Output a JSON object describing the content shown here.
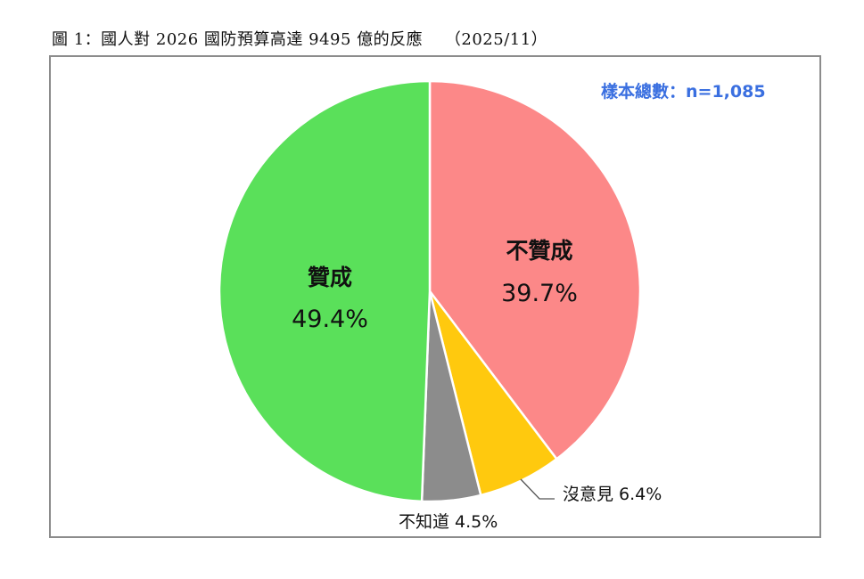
{
  "header": {
    "title": "圖 1：國人對 2026 國防預算高達 9495 億的反應　 （2025/11）"
  },
  "sample": {
    "text": "樣本總數：n=1,085"
  },
  "colors": {
    "approve": "#5ae05a",
    "disapprove": "#fc8888",
    "no_opinion": "#ffc90e",
    "dont_know": "#8c8c8c",
    "sample_text": "#3a6fe0",
    "frame": "#8c8c8c"
  },
  "labels": {
    "approve_name": "贊成",
    "approve_pct": "49.4%",
    "disapprove_name": "不贊成",
    "disapprove_pct": "39.7%",
    "no_opinion": "沒意見 6.4%",
    "dont_know": "不知道 4.5%"
  },
  "chart_data": {
    "type": "pie",
    "title": "圖 1：國人對 2026 國防預算高達 9495 億的反應 （2025/11）",
    "annotation": "樣本總數：n=1,085",
    "categories": [
      "不贊成",
      "沒意見",
      "不知道",
      "贊成"
    ],
    "values": [
      39.7,
      6.4,
      4.5,
      49.4
    ],
    "unit": "%",
    "start_angle": "12 o'clock",
    "direction": "clockwise",
    "colors": [
      "#fc8888",
      "#ffc90e",
      "#8c8c8c",
      "#5ae05a"
    ],
    "legend": "none (data labels on slices)"
  }
}
